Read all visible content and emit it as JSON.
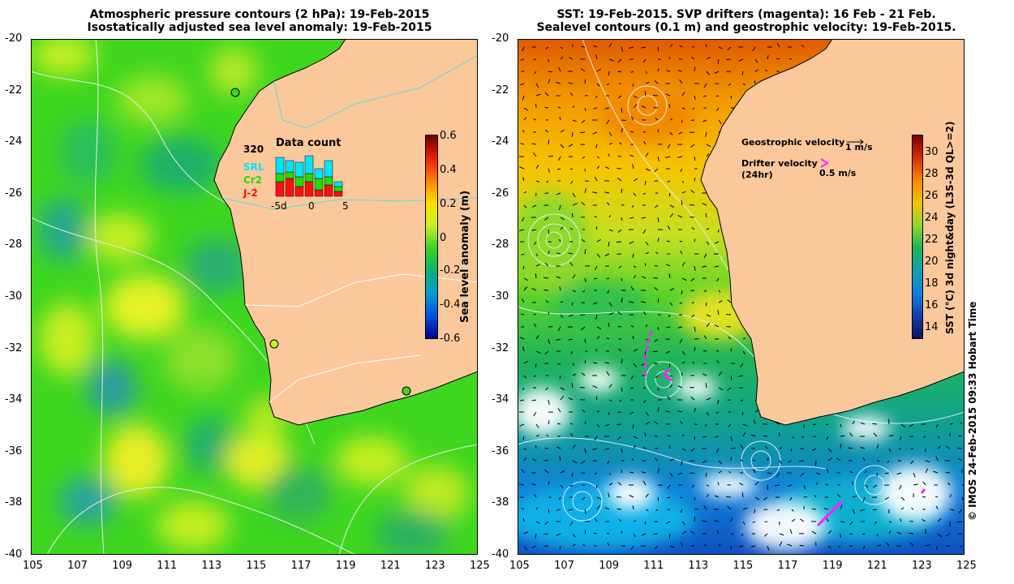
{
  "left_panel": {
    "title_line1": "Atmospheric pressure contours (2 hPa): 19-Feb-2015",
    "title_line2": "Isostatically adjusted sea level anomaly: 19-Feb-2015",
    "colorbar": {
      "label": "Sea level anomaly (m)",
      "ticks": [
        "0.6",
        "0.4",
        "0.2",
        "0",
        "-0.2",
        "-0.4",
        "-0.6"
      ]
    },
    "inset": {
      "title": "Data count",
      "max_count": "320",
      "legend": [
        "SRL",
        "Cr2",
        "J-2"
      ],
      "legend_colors": [
        "#00e5ff",
        "#22dd00",
        "#ff1010"
      ],
      "x_ticks": [
        "-5d",
        "0",
        "5"
      ]
    }
  },
  "right_panel": {
    "title_line1": "SST: 19-Feb-2015. SVP drifters (magenta): 16 Feb - 21 Feb.",
    "title_line2": "Sealevel contours (0.1 m) and geostrophic velocity: 19-Feb-2015.",
    "legend": {
      "geostrophic_label": "Geostrophic velocity",
      "geostrophic_scale": "1 m/s",
      "drifter_label": "Drifter velocity",
      "drifter_label2": "(24hr)",
      "drifter_scale": "0.5 m/s"
    },
    "colorbar": {
      "label": "SST (°C) 3d night&day (L3S-3d QL>=2)",
      "ticks": [
        "30",
        "28",
        "26",
        "24",
        "22",
        "20",
        "18",
        "16",
        "14"
      ]
    }
  },
  "axes": {
    "lat_ticks": [
      "-20",
      "-22",
      "-24",
      "-26",
      "-28",
      "-30",
      "-32",
      "-34",
      "-36",
      "-38",
      "-40"
    ],
    "lon_ticks": [
      "105",
      "107",
      "109",
      "111",
      "113",
      "115",
      "117",
      "119",
      "121",
      "123",
      "125"
    ]
  },
  "footer": "© IMOS 24-Feb-2015 09:33 Hobart Time",
  "colors": {
    "land": "#fbc89b",
    "sla_base": "#44dd22",
    "coast": "#000000"
  }
}
